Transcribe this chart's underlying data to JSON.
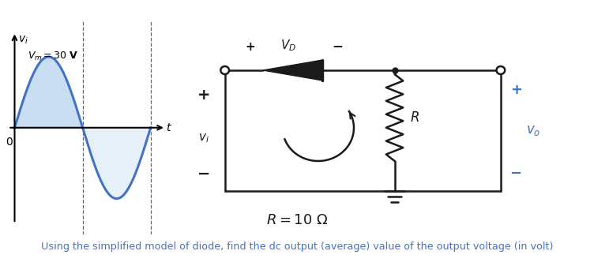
{
  "background_color": "#ffffff",
  "sine_color": "#4472C4",
  "sine_fill_pos_color": "#a8c8e8",
  "sine_fill_neg_color": "#c8dff0",
  "circuit_color": "#1a1a1a",
  "blue_text_color": "#4472C4",
  "bottom_text": "Using the simplified model of diode, find the dc output (average) value of the output voltage (in volt)",
  "bottom_text_color": "#4472C4",
  "figsize": [
    7.52,
    3.37
  ],
  "dpi": 100
}
